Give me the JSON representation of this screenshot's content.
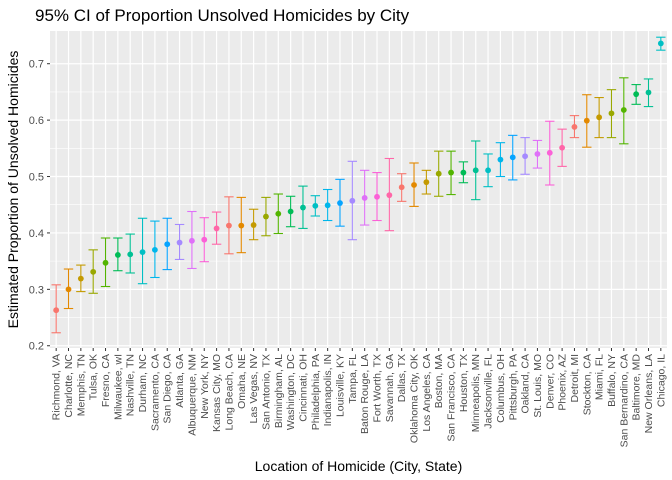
{
  "chart_data": {
    "type": "scatter",
    "title": "95% CI of Proportion Unsolved Homicides by City",
    "xlabel": "Location of Homicide (City, State)",
    "ylabel": "Estimated Proportion of Unsolved Homicides",
    "ylim": [
      0.196,
      0.758
    ],
    "yticks": [
      0.2,
      0.3,
      0.4,
      0.5,
      0.6,
      0.7
    ],
    "ytick_labels": [
      "0.2",
      "0.3",
      "0.4",
      "0.5",
      "0.6",
      "0.7"
    ],
    "grid": true,
    "legend": "none",
    "background": "#EBEBEB",
    "gridline_color": "#FFFFFF",
    "colors": [
      "#F8766D",
      "#E38900",
      "#C49A00",
      "#99A800",
      "#53B400",
      "#00BC56",
      "#00C094",
      "#00BFC4",
      "#00B6EB",
      "#06A4FF",
      "#A58AFF",
      "#DF70F8",
      "#FB61D7",
      "#FF66A8"
    ],
    "points": [
      {
        "city": "Richmond, VA",
        "estimate": 0.263,
        "low": 0.223,
        "high": 0.308
      },
      {
        "city": "Charlotte, NC",
        "estimate": 0.3,
        "low": 0.266,
        "high": 0.336
      },
      {
        "city": "Memphis, TN",
        "estimate": 0.319,
        "low": 0.296,
        "high": 0.343
      },
      {
        "city": "Tulsa, OK",
        "estimate": 0.331,
        "low": 0.293,
        "high": 0.37
      },
      {
        "city": "Fresno, CA",
        "estimate": 0.347,
        "low": 0.305,
        "high": 0.391
      },
      {
        "city": "Milwaukee, wI",
        "estimate": 0.361,
        "low": 0.333,
        "high": 0.391
      },
      {
        "city": "Nashville, TN",
        "estimate": 0.362,
        "low": 0.329,
        "high": 0.398
      },
      {
        "city": "Durham, NC",
        "estimate": 0.366,
        "low": 0.31,
        "high": 0.426
      },
      {
        "city": "Sacramento, CA",
        "estimate": 0.37,
        "low": 0.321,
        "high": 0.421
      },
      {
        "city": "San Diego, CA",
        "estimate": 0.38,
        "low": 0.335,
        "high": 0.426
      },
      {
        "city": "Atlanta, GA",
        "estimate": 0.383,
        "low": 0.353,
        "high": 0.415
      },
      {
        "city": "Albuquerque, NM",
        "estimate": 0.386,
        "low": 0.337,
        "high": 0.438
      },
      {
        "city": "New York, NY",
        "estimate": 0.388,
        "low": 0.349,
        "high": 0.427
      },
      {
        "city": "Kansas City, MO",
        "estimate": 0.408,
        "low": 0.38,
        "high": 0.437
      },
      {
        "city": "Long Beach, CA",
        "estimate": 0.413,
        "low": 0.363,
        "high": 0.464
      },
      {
        "city": "Omaha, NE",
        "estimate": 0.413,
        "low": 0.365,
        "high": 0.463
      },
      {
        "city": "Las Vegas, NV",
        "estimate": 0.414,
        "low": 0.388,
        "high": 0.442
      },
      {
        "city": "San Antonio, TX",
        "estimate": 0.429,
        "low": 0.395,
        "high": 0.463
      },
      {
        "city": "Birmingham, AL",
        "estimate": 0.434,
        "low": 0.399,
        "high": 0.469
      },
      {
        "city": "Washington, DC",
        "estimate": 0.438,
        "low": 0.411,
        "high": 0.465
      },
      {
        "city": "Cincinnati, OH",
        "estimate": 0.445,
        "low": 0.408,
        "high": 0.483
      },
      {
        "city": "Philadelphia, PA",
        "estimate": 0.448,
        "low": 0.43,
        "high": 0.466
      },
      {
        "city": "Indianapolis, IN",
        "estimate": 0.449,
        "low": 0.422,
        "high": 0.477
      },
      {
        "city": "Louisville, KY",
        "estimate": 0.453,
        "low": 0.412,
        "high": 0.495
      },
      {
        "city": "Tampa, FL",
        "estimate": 0.457,
        "low": 0.388,
        "high": 0.527
      },
      {
        "city": "Baton Rouge, LA",
        "estimate": 0.462,
        "low": 0.414,
        "high": 0.511
      },
      {
        "city": "Fort Worth, TX",
        "estimate": 0.464,
        "low": 0.422,
        "high": 0.507
      },
      {
        "city": "Savannah, GA",
        "estimate": 0.467,
        "low": 0.404,
        "high": 0.532
      },
      {
        "city": "Dallas, TX",
        "estimate": 0.481,
        "low": 0.456,
        "high": 0.505
      },
      {
        "city": "Oklahoma City, OK",
        "estimate": 0.485,
        "low": 0.447,
        "high": 0.524
      },
      {
        "city": "Los Angeles, CA",
        "estimate": 0.49,
        "low": 0.469,
        "high": 0.511
      },
      {
        "city": "Boston, MA",
        "estimate": 0.505,
        "low": 0.465,
        "high": 0.545
      },
      {
        "city": "San Francisco, CA",
        "estimate": 0.507,
        "low": 0.468,
        "high": 0.545
      },
      {
        "city": "Houston, TX",
        "estimate": 0.507,
        "low": 0.489,
        "high": 0.526
      },
      {
        "city": "Minneapolis, MN",
        "estimate": 0.511,
        "low": 0.459,
        "high": 0.563
      },
      {
        "city": "Jacksonville, FL",
        "estimate": 0.511,
        "low": 0.482,
        "high": 0.54
      },
      {
        "city": "Columbus, OH",
        "estimate": 0.53,
        "low": 0.5,
        "high": 0.56
      },
      {
        "city": "Pittsburgh, PA",
        "estimate": 0.534,
        "low": 0.494,
        "high": 0.573
      },
      {
        "city": "Oakland, CA",
        "estimate": 0.536,
        "low": 0.504,
        "high": 0.569
      },
      {
        "city": "St. Louis, MO",
        "estimate": 0.54,
        "low": 0.515,
        "high": 0.564
      },
      {
        "city": "Denver, CO",
        "estimate": 0.542,
        "low": 0.485,
        "high": 0.598
      },
      {
        "city": "Phoenix, AZ",
        "estimate": 0.551,
        "low": 0.518,
        "high": 0.584
      },
      {
        "city": "Detroit, MI",
        "estimate": 0.588,
        "low": 0.569,
        "high": 0.608
      },
      {
        "city": "Stockton, CA",
        "estimate": 0.599,
        "low": 0.552,
        "high": 0.645
      },
      {
        "city": "Miami, FL",
        "estimate": 0.605,
        "low": 0.569,
        "high": 0.64
      },
      {
        "city": "Buffalo, NY",
        "estimate": 0.612,
        "low": 0.569,
        "high": 0.654
      },
      {
        "city": "San Bernardino, CA",
        "estimate": 0.618,
        "low": 0.558,
        "high": 0.675
      },
      {
        "city": "Baltimore, MD",
        "estimate": 0.646,
        "low": 0.628,
        "high": 0.663
      },
      {
        "city": "New Orleans, LA",
        "estimate": 0.649,
        "low": 0.624,
        "high": 0.673
      },
      {
        "city": "Chicago, IL",
        "estimate": 0.736,
        "low": 0.724,
        "high": 0.747
      }
    ]
  }
}
